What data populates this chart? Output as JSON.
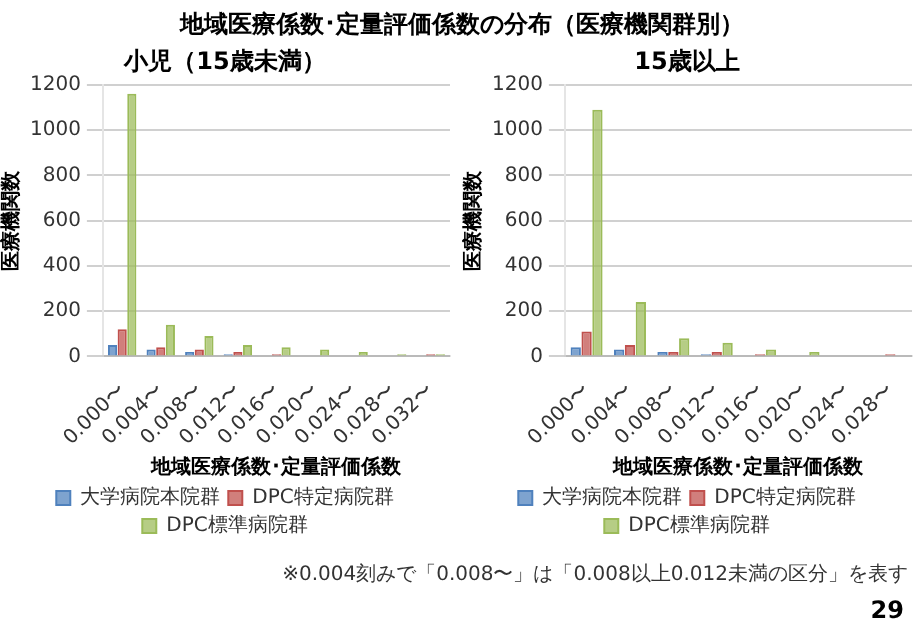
{
  "chart_data": [
    {
      "type": "bar",
      "title": "地域医療係数･定量評価係数の分布（医療機関群別）",
      "subtitle": "小児（15歳未満）",
      "xlabel": "地域医療係数･定量評価係数",
      "ylabel": "医療機関数",
      "categories": [
        "0.000〜",
        "0.004〜",
        "0.008〜",
        "0.012〜",
        "0.016〜",
        "0.020〜",
        "0.024〜",
        "0.028〜",
        "0.032〜"
      ],
      "series": [
        {
          "name": "大学病院本院群",
          "color": "#4f81bd",
          "values": [
            50,
            30,
            20,
            10,
            0,
            0,
            0,
            0,
            0
          ]
        },
        {
          "name": "DPC特定病院群",
          "color": "#c0504d",
          "values": [
            120,
            40,
            30,
            20,
            10,
            0,
            0,
            0,
            10
          ]
        },
        {
          "name": "DPC標準病院群",
          "color": "#9bbb59",
          "values": [
            1160,
            140,
            90,
            50,
            40,
            30,
            20,
            10,
            10
          ]
        }
      ],
      "ylim": [
        0,
        1200
      ],
      "yticks": [
        0,
        200,
        400,
        600,
        800,
        1000,
        1200
      ],
      "grid": "y",
      "legend": "bottom"
    },
    {
      "type": "bar",
      "subtitle": "15歳以上",
      "xlabel": "地域医療係数･定量評価係数",
      "ylabel": "医療機関数",
      "categories": [
        "0.000〜",
        "0.004〜",
        "0.008〜",
        "0.012〜",
        "0.016〜",
        "0.020〜",
        "0.024〜",
        "0.028〜"
      ],
      "series": [
        {
          "name": "大学病院本院群",
          "color": "#4f81bd",
          "values": [
            40,
            30,
            20,
            10,
            0,
            0,
            0,
            0
          ]
        },
        {
          "name": "DPC特定病院群",
          "color": "#c0504d",
          "values": [
            110,
            50,
            20,
            20,
            10,
            0,
            0,
            10
          ]
        },
        {
          "name": "DPC標準病院群",
          "color": "#9bbb59",
          "values": [
            1090,
            240,
            80,
            60,
            30,
            20,
            0,
            0
          ]
        }
      ],
      "ylim": [
        0,
        1200
      ],
      "yticks": [
        0,
        200,
        400,
        600,
        800,
        1000,
        1200
      ],
      "grid": "y",
      "legend": "bottom",
      "annotations": [
        "※0.004刻みで「0.008〜」は「0.008以上0.012未満の区分」を表す",
        "29"
      ]
    }
  ]
}
